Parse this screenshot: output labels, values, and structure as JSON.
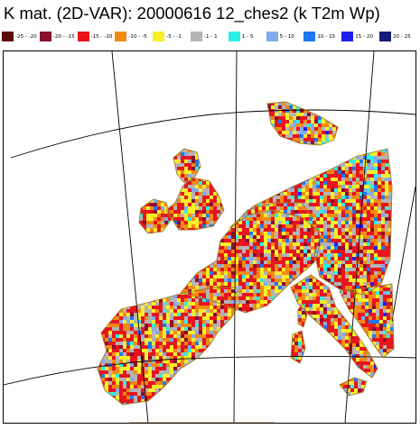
{
  "title": "K mat. (2D-VAR): 20000616 12_ches2 (k T2m Wp)",
  "legend": [
    {
      "label": "-25 - -20",
      "color": "#5a0a0a"
    },
    {
      "label": "-20 - -15",
      "color": "#8b0f2e"
    },
    {
      "label": "-15 - -10",
      "color": "#e8141e"
    },
    {
      "label": "-10 - -5",
      "color": "#f28a14"
    },
    {
      "label": "-5 - -1",
      "color": "#f7ef2a"
    },
    {
      "label": "-1 - 1",
      "color": "#b4b4b4"
    },
    {
      "label": "1 - 5",
      "color": "#2af0e6"
    },
    {
      "label": "5 - 10",
      "color": "#82aaee"
    },
    {
      "label": "10 - 15",
      "color": "#1e78f0"
    },
    {
      "label": "15 - 20",
      "color": "#1e1ef0"
    },
    {
      "label": "20 - 25",
      "color": "#141e78"
    }
  ],
  "map": {
    "coastline_color": "#a07828",
    "grid_color": "#000000"
  }
}
